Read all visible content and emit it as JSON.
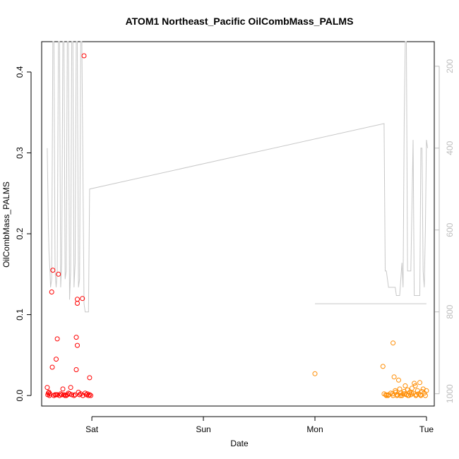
{
  "chart_data": {
    "type": "scatter",
    "title": "ATOM1 Northeast_Pacific OilCombMass_PALMS",
    "xlabel": "Date",
    "ylabel": "OilCombMass_PALMS",
    "x_tick_labels": [
      "Sat",
      "Sun",
      "Mon",
      "Tue"
    ],
    "x_ticks_days": [
      0,
      1,
      2,
      3
    ],
    "xlim_days": [
      -0.45,
      3.07
    ],
    "ylim": [
      -0.013,
      0.4375
    ],
    "y_ticks": [
      0.0,
      0.1,
      0.2,
      0.3,
      0.4
    ],
    "y_tick_labels": [
      "0.0",
      "0.1",
      "0.2",
      "0.3",
      "0.4"
    ],
    "right_axis": {
      "label": "",
      "reversed": true,
      "range": [
        1030,
        140
      ],
      "ticks": [
        200,
        400,
        600,
        800,
        1000
      ],
      "tick_labels": [
        "200",
        "400",
        "600",
        "800",
        "1000"
      ],
      "color": "#bdbdbd"
    },
    "grid": false,
    "legend": "none",
    "series": [
      {
        "color": "#ff0000",
        "points_days": [
          [
            -0.4,
            0.01
          ],
          [
            -0.395,
            0.001
          ],
          [
            -0.39,
            0.003
          ],
          [
            -0.385,
            0.004
          ],
          [
            -0.38,
            0.0
          ],
          [
            -0.375,
            0.002
          ],
          [
            -0.35,
            0.155
          ],
          [
            -0.34,
            0.0
          ],
          [
            -0.33,
            0.001
          ],
          [
            -0.36,
            0.128
          ],
          [
            -0.355,
            0.035
          ],
          [
            -0.31,
            0.001
          ],
          [
            -0.3,
            0.15
          ],
          [
            -0.31,
            0.07
          ],
          [
            -0.32,
            0.045
          ],
          [
            -0.32,
            0.001
          ],
          [
            -0.29,
            0.0
          ],
          [
            -0.28,
            0.002
          ],
          [
            -0.26,
            0.008
          ],
          [
            -0.25,
            0.001
          ],
          [
            -0.24,
            0.0
          ],
          [
            -0.22,
            0.001
          ],
          [
            -0.2,
            0.002
          ],
          [
            -0.19,
            0.01
          ],
          [
            -0.18,
            0.001
          ],
          [
            -0.16,
            0.0
          ],
          [
            -0.14,
            0.072
          ],
          [
            -0.13,
            0.062
          ],
          [
            -0.14,
            0.032
          ],
          [
            -0.13,
            0.114
          ],
          [
            -0.13,
            0.119
          ],
          [
            -0.12,
            0.004
          ],
          [
            -0.11,
            0.001
          ],
          [
            -0.1,
            0.002
          ],
          [
            -0.085,
            0.12
          ],
          [
            -0.07,
            0.42
          ],
          [
            -0.08,
            0.0
          ],
          [
            -0.06,
            0.003
          ],
          [
            -0.05,
            0.001
          ],
          [
            -0.03,
            0.0
          ],
          [
            -0.02,
            0.022
          ],
          [
            -0.02,
            0.001
          ],
          [
            -0.01,
            0.0
          ],
          [
            -0.04,
            0.002
          ],
          [
            -0.23,
            0.0
          ],
          [
            -0.21,
            0.003
          ],
          [
            -0.15,
            0.001
          ],
          [
            -0.27,
            0.001
          ]
        ]
      },
      {
        "color": "#ff8c00",
        "points_days": [
          [
            2.0,
            0.027
          ],
          [
            2.61,
            0.036
          ],
          [
            2.62,
            0.002
          ],
          [
            2.64,
            0.0
          ],
          [
            2.66,
            0.001
          ],
          [
            2.68,
            0.003
          ],
          [
            2.7,
            0.065
          ],
          [
            2.71,
            0.023
          ],
          [
            2.7,
            0.0
          ],
          [
            2.72,
            0.006
          ],
          [
            2.74,
            0.001
          ],
          [
            2.75,
            0.019
          ],
          [
            2.76,
            0.008
          ],
          [
            2.77,
            0.003
          ],
          [
            2.78,
            0.0
          ],
          [
            2.79,
            0.002
          ],
          [
            2.8,
            0.005
          ],
          [
            2.81,
            0.012
          ],
          [
            2.82,
            0.001
          ],
          [
            2.83,
            0.007
          ],
          [
            2.84,
            0.0
          ],
          [
            2.85,
            0.004
          ],
          [
            2.86,
            0.001
          ],
          [
            2.87,
            0.009
          ],
          [
            2.88,
            0.003
          ],
          [
            2.89,
            0.015
          ],
          [
            2.9,
            0.012
          ],
          [
            2.91,
            0.001
          ],
          [
            2.92,
            0.006
          ],
          [
            2.93,
            0.002
          ],
          [
            2.94,
            0.016
          ],
          [
            2.95,
            0.0
          ],
          [
            2.96,
            0.005
          ],
          [
            2.97,
            0.008
          ],
          [
            2.98,
            0.003
          ],
          [
            2.99,
            0.0
          ],
          [
            3.0,
            0.006
          ],
          [
            2.635,
            0.001
          ],
          [
            2.655,
            0.0
          ],
          [
            2.695,
            0.002
          ],
          [
            2.725,
            0.004
          ],
          [
            2.735,
            0.0
          ],
          [
            2.765,
            0.0
          ],
          [
            2.805,
            0.002
          ],
          [
            2.835,
            0.0
          ],
          [
            2.865,
            0.003
          ],
          [
            2.905,
            0.0
          ],
          [
            2.945,
            0.001
          ]
        ]
      }
    ],
    "pressure_line": {
      "color": "#c8c8c8",
      "points_days": [
        [
          -0.4,
          400
        ],
        [
          -0.39,
          590
        ],
        [
          -0.385,
          650
        ],
        [
          -0.375,
          700
        ],
        [
          -0.37,
          740
        ],
        [
          -0.36,
          720
        ],
        [
          -0.35,
          140
        ],
        [
          -0.34,
          140
        ],
        [
          -0.33,
          700
        ],
        [
          -0.32,
          740
        ],
        [
          -0.31,
          700
        ],
        [
          -0.3,
          140
        ],
        [
          -0.29,
          140
        ],
        [
          -0.28,
          740
        ],
        [
          -0.27,
          680
        ],
        [
          -0.26,
          140
        ],
        [
          -0.25,
          140
        ],
        [
          -0.24,
          720
        ],
        [
          -0.23,
          700
        ],
        [
          -0.22,
          140
        ],
        [
          -0.21,
          140
        ],
        [
          -0.2,
          770
        ],
        [
          -0.19,
          700
        ],
        [
          -0.18,
          140
        ],
        [
          -0.17,
          140
        ],
        [
          -0.16,
          740
        ],
        [
          -0.15,
          680
        ],
        [
          -0.14,
          140
        ],
        [
          -0.13,
          140
        ],
        [
          -0.12,
          740
        ],
        [
          -0.11,
          720
        ],
        [
          -0.1,
          140
        ],
        [
          -0.09,
          140
        ],
        [
          -0.07,
          780
        ],
        [
          -0.06,
          800
        ],
        [
          -0.04,
          800
        ],
        [
          -0.03,
          800
        ],
        [
          -0.02,
          500
        ],
        [
          2.62,
          340
        ],
        [
          2.63,
          700
        ],
        [
          2.64,
          700
        ],
        [
          2.66,
          740
        ],
        [
          2.72,
          740
        ],
        [
          2.73,
          760
        ],
        [
          2.76,
          760
        ],
        [
          2.78,
          680
        ],
        [
          2.79,
          740
        ],
        [
          2.8,
          340
        ],
        [
          2.81,
          140
        ],
        [
          2.82,
          140
        ],
        [
          2.83,
          700
        ],
        [
          2.84,
          700
        ],
        [
          2.86,
          700
        ],
        [
          2.88,
          380
        ],
        [
          2.89,
          760
        ],
        [
          2.92,
          760
        ],
        [
          2.93,
          760
        ],
        [
          2.94,
          760
        ],
        [
          2.95,
          400
        ],
        [
          2.96,
          400
        ],
        [
          2.97,
          700
        ],
        [
          2.98,
          740
        ],
        [
          2.99,
          600
        ],
        [
          3.0,
          380
        ],
        [
          3.01,
          400
        ]
      ],
      "segment2_days": [
        [
          2.0,
          780
        ],
        [
          3.0,
          780
        ]
      ]
    }
  }
}
